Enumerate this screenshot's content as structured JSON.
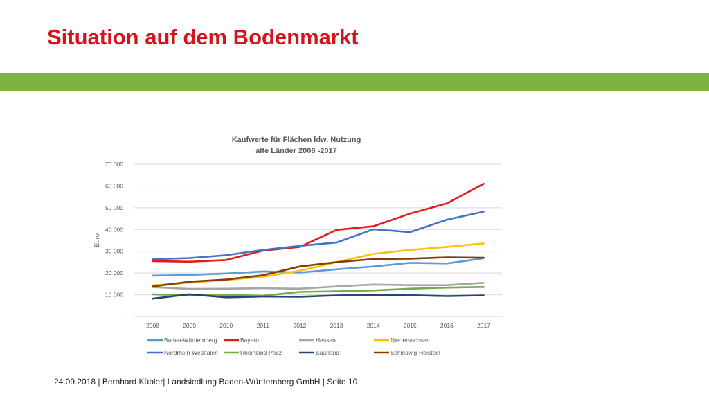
{
  "slide": {
    "title": "Situation auf dem Bodenmarkt",
    "footer": "24.09.2018 | Bernhard Kübler| Landsiedlung Baden-Württemberg GmbH | Seite 10",
    "accent_color": "#7cb342",
    "title_color": "#d6131c"
  },
  "chart_data": {
    "type": "line",
    "title_lines": [
      "Kaufwerte für Flächen ldw. Nutzung",
      "alte Länder 2008 -2017"
    ],
    "ylabel": "Euro",
    "xlabel": "",
    "ylim": [
      0,
      70000
    ],
    "yticks": [
      0,
      10000,
      20000,
      30000,
      40000,
      50000,
      60000,
      70000
    ],
    "ytick_labels": [
      "-",
      "10 000",
      "20 000",
      "30 000",
      "40 000",
      "50 000",
      "60 000",
      "70 000"
    ],
    "grid": true,
    "legend_position": "bottom",
    "categories": [
      "2008",
      "2009",
      "2010",
      "2011",
      "2012",
      "2013",
      "2014",
      "2015",
      "2016",
      "2017"
    ],
    "series": [
      {
        "name": "Baden-Württemberg",
        "color": "#5b9bd5",
        "values": [
          18800,
          19100,
          19800,
          20700,
          20200,
          21700,
          23000,
          24700,
          24400,
          26800
        ]
      },
      {
        "name": "Bayern",
        "color": "#e31a1c",
        "values": [
          25500,
          25200,
          26000,
          30300,
          32000,
          39800,
          41500,
          47300,
          52000,
          61000
        ]
      },
      {
        "name": "Hessen",
        "color": "#a5a5a5",
        "values": [
          13500,
          12700,
          12800,
          13000,
          12800,
          13800,
          14700,
          14400,
          14400,
          15500
        ]
      },
      {
        "name": "Niedersachsen",
        "color": "#ffc000",
        "values": [
          14300,
          15600,
          16800,
          18300,
          21000,
          25000,
          28800,
          30600,
          32000,
          33600
        ]
      },
      {
        "name": "Nordrhein-Westfalen",
        "color": "#4472c4",
        "values": [
          26300,
          26900,
          28200,
          30600,
          32500,
          34000,
          40100,
          38800,
          44500,
          48200
        ]
      },
      {
        "name": "Rheinland-Pfalz",
        "color": "#70ad47",
        "values": [
          10200,
          9600,
          10000,
          9500,
          11300,
          11600,
          12000,
          12800,
          13300,
          13600
        ]
      },
      {
        "name": "Saarland",
        "color": "#264478",
        "values": [
          8200,
          10200,
          8800,
          9200,
          9100,
          9700,
          10000,
          9800,
          9400,
          9700
        ]
      },
      {
        "name": "Schleswig-Holstein",
        "color": "#843c0c",
        "values": [
          13800,
          16000,
          17000,
          19000,
          23000,
          25000,
          26400,
          26600,
          27200,
          27000
        ]
      }
    ]
  }
}
